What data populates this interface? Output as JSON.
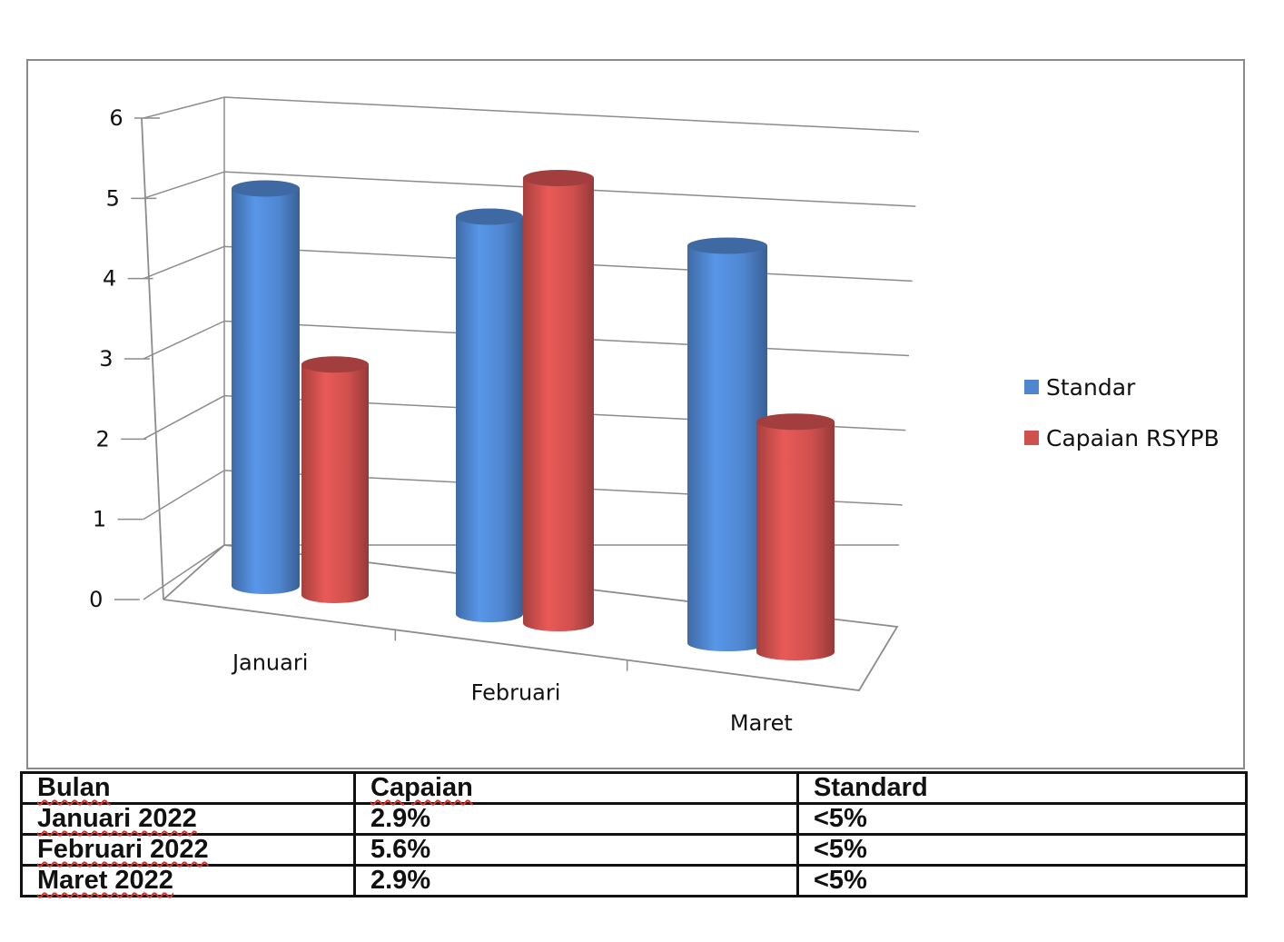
{
  "colors": {
    "standar": "#4f86d0",
    "capaian": "#d0504e",
    "grid": "#8c8c8c"
  },
  "chart_data": {
    "type": "bar",
    "title": "",
    "xlabel": "",
    "ylabel": "",
    "ylim": [
      0,
      6
    ],
    "yticks": [
      "0",
      "1",
      "2",
      "3",
      "4",
      "5",
      "6"
    ],
    "categories": [
      "Januari",
      "Februari",
      "Maret"
    ],
    "series": [
      {
        "name": "Standar",
        "values": [
          5,
          5,
          5
        ]
      },
      {
        "name": "Capaian RSYPB",
        "values": [
          2.9,
          5.6,
          2.9
        ]
      }
    ],
    "grid": true,
    "legend": "right",
    "style": "3d-cylinder"
  },
  "table": {
    "headers": [
      "Bulan",
      "Capaian",
      "Standard"
    ],
    "rows": [
      [
        "Januari 2022",
        "2.9%",
        "<5%"
      ],
      [
        "Februari 2022",
        "5.6%",
        "<5%"
      ],
      [
        "Maret 2022",
        "2.9%",
        "<5%"
      ]
    ]
  }
}
